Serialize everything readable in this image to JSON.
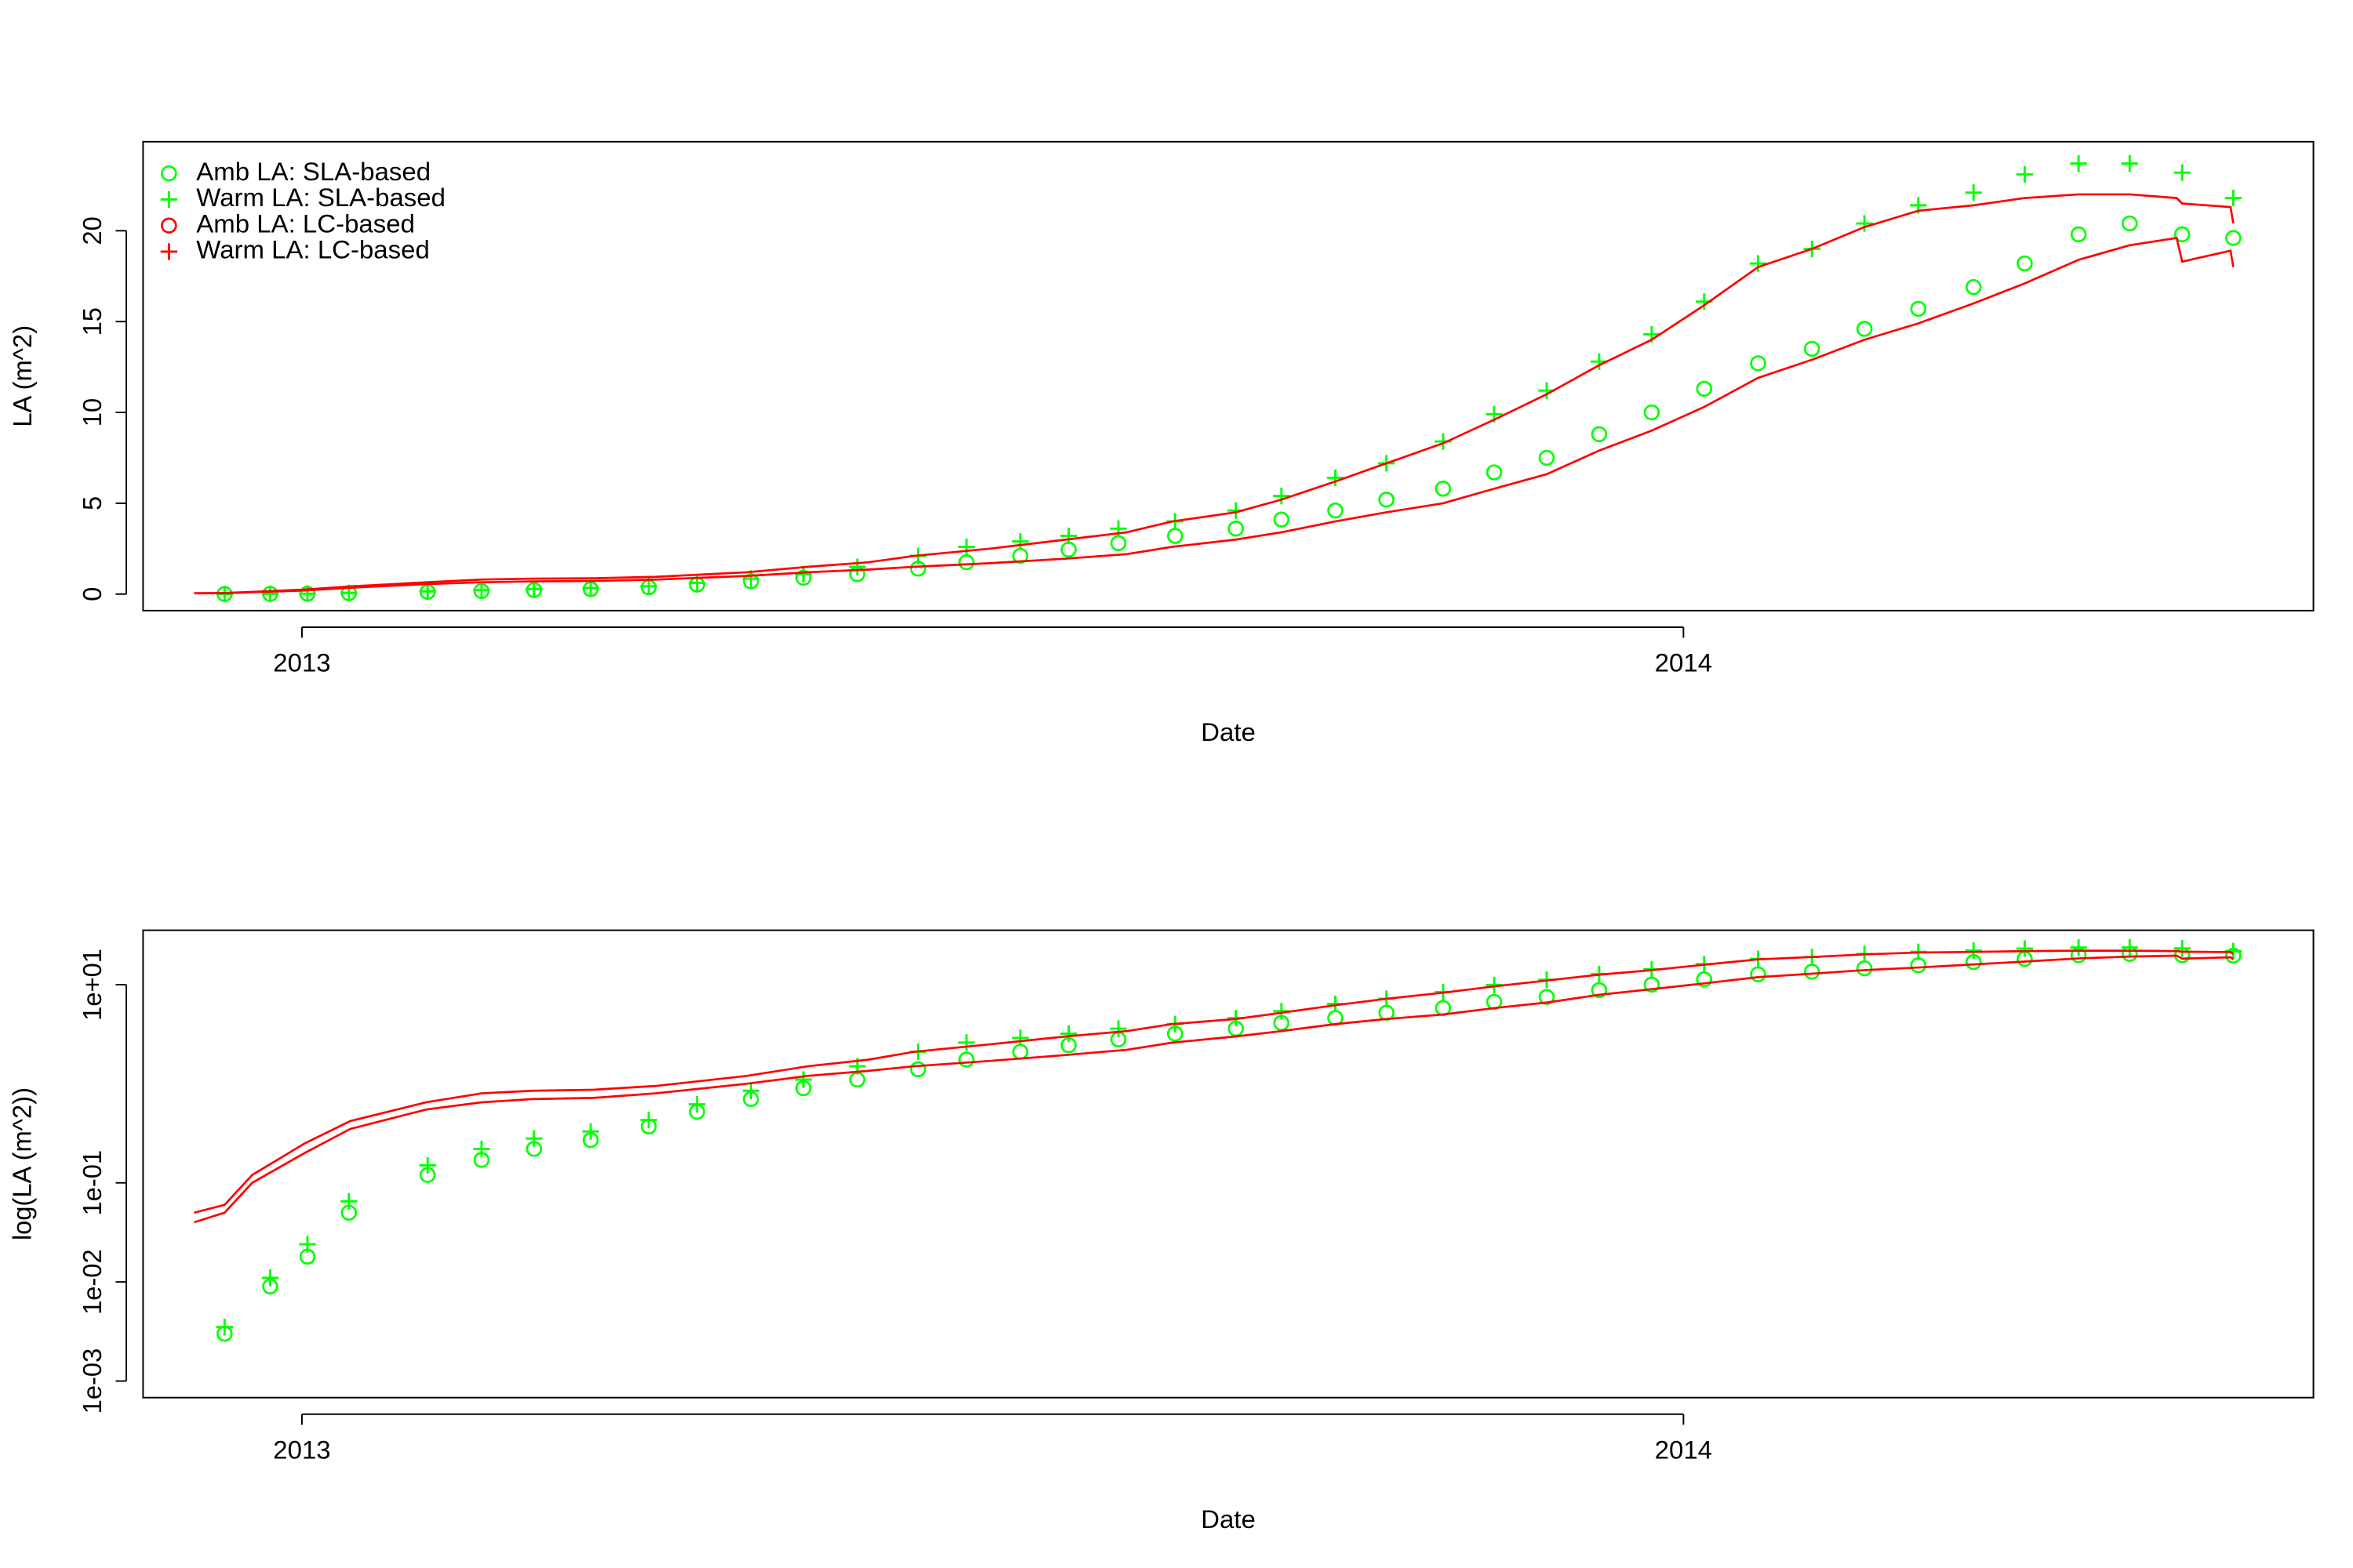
{
  "chart_data": [
    {
      "type": "line",
      "xlabel": "Date",
      "ylabel": "LA (m^2)",
      "xlim": [
        2012.885,
        2014.456
      ],
      "xticks": [
        2013,
        2014
      ],
      "ylim": [
        -0.91,
        24.9
      ],
      "yticks": [
        0,
        5,
        10,
        15,
        20
      ],
      "legend": "topleft",
      "series": [
        {
          "name": "Amb LA: SLA-based",
          "color": "#00ff00",
          "style": "points",
          "marker": "circle",
          "x": [
            2012.944,
            2012.977,
            2013.004,
            2013.034,
            2013.091,
            2013.13,
            2013.168,
            2013.209,
            2013.251,
            2013.286,
            2013.325,
            2013.363,
            2013.402,
            2013.446,
            2013.481,
            2013.52,
            2013.555,
            2013.591,
            2013.632,
            2013.676,
            2013.709,
            2013.748,
            2013.785,
            2013.826,
            2013.863,
            2013.901,
            2013.939,
            2013.977,
            2014.015,
            2014.054,
            2014.093,
            2014.131,
            2014.17,
            2014.21,
            2014.247,
            2014.286,
            2014.323,
            2014.361,
            2014.398
          ],
          "values": [
            0.003,
            0.009,
            0.018,
            0.05,
            0.12,
            0.17,
            0.22,
            0.27,
            0.37,
            0.52,
            0.7,
            0.9,
            1.1,
            1.4,
            1.75,
            2.1,
            2.45,
            2.8,
            3.2,
            3.6,
            4.1,
            4.6,
            5.2,
            5.8,
            6.7,
            7.5,
            8.8,
            10.0,
            11.3,
            12.7,
            13.5,
            14.6,
            15.7,
            16.9,
            18.2,
            19.8,
            20.4,
            19.8,
            19.6
          ]
        },
        {
          "name": "Warm LA: SLA-based",
          "color": "#00ff00",
          "style": "points",
          "marker": "plus",
          "x": [
            2012.944,
            2012.977,
            2013.004,
            2013.034,
            2013.091,
            2013.13,
            2013.168,
            2013.209,
            2013.251,
            2013.286,
            2013.325,
            2013.363,
            2013.402,
            2013.446,
            2013.481,
            2013.52,
            2013.555,
            2013.591,
            2013.632,
            2013.676,
            2013.709,
            2013.748,
            2013.785,
            2013.826,
            2013.863,
            2013.901,
            2013.939,
            2013.977,
            2014.015,
            2014.054,
            2014.093,
            2014.131,
            2014.17,
            2014.21,
            2014.247,
            2014.286,
            2014.323,
            2014.361,
            2014.398
          ],
          "values": [
            0.0035,
            0.011,
            0.024,
            0.065,
            0.15,
            0.22,
            0.28,
            0.33,
            0.43,
            0.62,
            0.85,
            1.1,
            1.5,
            2.1,
            2.6,
            2.9,
            3.2,
            3.6,
            4.0,
            4.6,
            5.4,
            6.4,
            7.2,
            8.4,
            9.9,
            11.2,
            12.8,
            14.3,
            16.1,
            18.2,
            19.0,
            20.4,
            21.4,
            22.1,
            23.1,
            23.7,
            23.7,
            23.2,
            21.8
          ]
        },
        {
          "name": "Amb LA: LC-based",
          "color": "#ff0000",
          "style": "line",
          "marker": "circle",
          "x": [
            2012.922,
            2012.944,
            2012.964,
            2013.002,
            2013.035,
            2013.09,
            2013.13,
            2013.167,
            2013.211,
            2013.256,
            2013.322,
            2013.366,
            2013.41,
            2013.443,
            2013.498,
            2013.553,
            2013.597,
            2013.63,
            2013.676,
            2013.709,
            2013.748,
            2013.785,
            2013.826,
            2013.863,
            2013.901,
            2013.939,
            2013.977,
            2014.015,
            2014.054,
            2014.093,
            2014.131,
            2014.17,
            2014.21,
            2014.247,
            2014.286,
            2014.323,
            2014.357,
            2014.361,
            2014.396,
            2014.398
          ],
          "values": [
            0.04,
            0.05,
            0.1,
            0.2,
            0.35,
            0.55,
            0.65,
            0.7,
            0.72,
            0.8,
            1.0,
            1.2,
            1.35,
            1.5,
            1.7,
            1.95,
            2.2,
            2.6,
            3.0,
            3.4,
            4.0,
            4.5,
            5.0,
            5.8,
            6.6,
            7.9,
            9.0,
            10.3,
            11.9,
            12.9,
            14.0,
            14.9,
            16.0,
            17.1,
            18.4,
            19.2,
            19.6,
            18.3,
            18.9,
            18.0
          ]
        },
        {
          "name": "Warm LA: LC-based",
          "color": "#ff0000",
          "style": "line",
          "marker": "plus",
          "x": [
            2012.922,
            2012.944,
            2012.964,
            2013.002,
            2013.035,
            2013.09,
            2013.13,
            2013.167,
            2013.211,
            2013.256,
            2013.322,
            2013.366,
            2013.41,
            2013.443,
            2013.498,
            2013.553,
            2013.597,
            2013.63,
            2013.676,
            2013.709,
            2013.748,
            2013.785,
            2013.826,
            2013.863,
            2013.901,
            2013.939,
            2013.977,
            2014.015,
            2014.054,
            2014.093,
            2014.131,
            2014.17,
            2014.21,
            2014.247,
            2014.286,
            2014.323,
            2014.357,
            2014.361,
            2014.396,
            2014.398
          ],
          "values": [
            0.05,
            0.06,
            0.12,
            0.25,
            0.42,
            0.65,
            0.8,
            0.85,
            0.87,
            0.95,
            1.2,
            1.5,
            1.75,
            2.1,
            2.5,
            3.0,
            3.4,
            4.0,
            4.5,
            5.2,
            6.2,
            7.2,
            8.3,
            9.6,
            11.0,
            12.6,
            14.0,
            15.9,
            18.0,
            19.0,
            20.2,
            21.1,
            21.4,
            21.8,
            22.0,
            22.0,
            21.8,
            21.5,
            21.3,
            20.4
          ]
        }
      ]
    },
    {
      "type": "line",
      "xlabel": "Date",
      "ylabel": "log(LA (m^2))",
      "log_y": true,
      "xlim": [
        2012.885,
        2014.456
      ],
      "xticks": [
        2013,
        2014
      ],
      "ylim": [
        0.00068,
        35.4
      ],
      "yticks": [
        {
          "value": 0.001,
          "label": "1e-03"
        },
        {
          "value": 0.01,
          "label": "1e-02"
        },
        {
          "value": 0.1,
          "label": "1e-01"
        },
        {
          "value": 10,
          "label": "1e+01"
        }
      ],
      "series": [
        {
          "color": "#00ff00",
          "style": "points",
          "marker": "circle",
          "x": [
            2012.944,
            2012.977,
            2013.004,
            2013.034,
            2013.091,
            2013.13,
            2013.168,
            2013.209,
            2013.251,
            2013.286,
            2013.325,
            2013.363,
            2013.402,
            2013.446,
            2013.481,
            2013.52,
            2013.555,
            2013.591,
            2013.632,
            2013.676,
            2013.709,
            2013.748,
            2013.785,
            2013.826,
            2013.863,
            2013.901,
            2013.939,
            2013.977,
            2014.015,
            2014.054,
            2014.093,
            2014.131,
            2014.17,
            2014.21,
            2014.247,
            2014.286,
            2014.323,
            2014.361,
            2014.398
          ],
          "values": [
            0.003,
            0.009,
            0.018,
            0.05,
            0.12,
            0.17,
            0.22,
            0.27,
            0.37,
            0.52,
            0.7,
            0.9,
            1.1,
            1.4,
            1.75,
            2.1,
            2.45,
            2.8,
            3.2,
            3.6,
            4.1,
            4.6,
            5.2,
            5.8,
            6.7,
            7.5,
            8.8,
            10.0,
            11.3,
            12.7,
            13.5,
            14.6,
            15.7,
            16.9,
            18.2,
            19.8,
            20.4,
            19.8,
            19.6
          ]
        },
        {
          "color": "#00ff00",
          "style": "points",
          "marker": "plus",
          "x": [
            2012.944,
            2012.977,
            2013.004,
            2013.034,
            2013.091,
            2013.13,
            2013.168,
            2013.209,
            2013.251,
            2013.286,
            2013.325,
            2013.363,
            2013.402,
            2013.446,
            2013.481,
            2013.52,
            2013.555,
            2013.591,
            2013.632,
            2013.676,
            2013.709,
            2013.748,
            2013.785,
            2013.826,
            2013.863,
            2013.901,
            2013.939,
            2013.977,
            2014.015,
            2014.054,
            2014.093,
            2014.131,
            2014.17,
            2014.21,
            2014.247,
            2014.286,
            2014.323,
            2014.361,
            2014.398
          ],
          "values": [
            0.0035,
            0.011,
            0.024,
            0.065,
            0.15,
            0.22,
            0.28,
            0.33,
            0.43,
            0.62,
            0.85,
            1.1,
            1.5,
            2.1,
            2.6,
            2.9,
            3.2,
            3.6,
            4.0,
            4.6,
            5.4,
            6.4,
            7.2,
            8.4,
            9.9,
            11.2,
            12.8,
            14.3,
            16.1,
            18.2,
            19.0,
            20.4,
            21.4,
            22.1,
            23.1,
            23.7,
            23.7,
            23.2,
            21.8
          ]
        },
        {
          "color": "#ff0000",
          "style": "line",
          "marker": "circle",
          "x": [
            2012.922,
            2012.944,
            2012.964,
            2013.002,
            2013.035,
            2013.09,
            2013.13,
            2013.167,
            2013.211,
            2013.256,
            2013.322,
            2013.366,
            2013.41,
            2013.443,
            2013.498,
            2013.553,
            2013.597,
            2013.63,
            2013.676,
            2013.709,
            2013.748,
            2013.785,
            2013.826,
            2013.863,
            2013.901,
            2013.939,
            2013.977,
            2014.015,
            2014.054,
            2014.093,
            2014.131,
            2014.17,
            2014.21,
            2014.247,
            2014.286,
            2014.323,
            2014.357,
            2014.361,
            2014.396,
            2014.398
          ],
          "values": [
            0.04,
            0.05,
            0.1,
            0.2,
            0.35,
            0.55,
            0.65,
            0.7,
            0.72,
            0.8,
            1.0,
            1.2,
            1.35,
            1.5,
            1.7,
            1.95,
            2.2,
            2.6,
            3.0,
            3.4,
            4.0,
            4.5,
            5.0,
            5.8,
            6.6,
            7.9,
            9.0,
            10.3,
            11.9,
            12.9,
            14.0,
            14.9,
            16.0,
            17.1,
            18.4,
            19.2,
            19.6,
            18.3,
            18.9,
            18.0
          ]
        },
        {
          "color": "#ff0000",
          "style": "line",
          "marker": "plus",
          "x": [
            2012.922,
            2012.944,
            2012.964,
            2013.002,
            2013.035,
            2013.09,
            2013.13,
            2013.167,
            2013.211,
            2013.256,
            2013.322,
            2013.366,
            2013.41,
            2013.443,
            2013.498,
            2013.553,
            2013.597,
            2013.63,
            2013.676,
            2013.709,
            2013.748,
            2013.785,
            2013.826,
            2013.863,
            2013.901,
            2013.939,
            2013.977,
            2014.015,
            2014.054,
            2014.093,
            2014.131,
            2014.17,
            2014.21,
            2014.247,
            2014.286,
            2014.323,
            2014.357,
            2014.361,
            2014.396,
            2014.398
          ],
          "values": [
            0.05,
            0.06,
            0.12,
            0.25,
            0.42,
            0.65,
            0.8,
            0.85,
            0.87,
            0.95,
            1.2,
            1.5,
            1.75,
            2.1,
            2.5,
            3.0,
            3.4,
            4.0,
            4.5,
            5.2,
            6.2,
            7.2,
            8.3,
            9.6,
            11.0,
            12.6,
            14.0,
            15.9,
            18.0,
            19.0,
            20.2,
            21.1,
            21.4,
            21.8,
            22.0,
            22.0,
            21.8,
            21.5,
            21.3,
            20.4
          ]
        }
      ]
    }
  ]
}
